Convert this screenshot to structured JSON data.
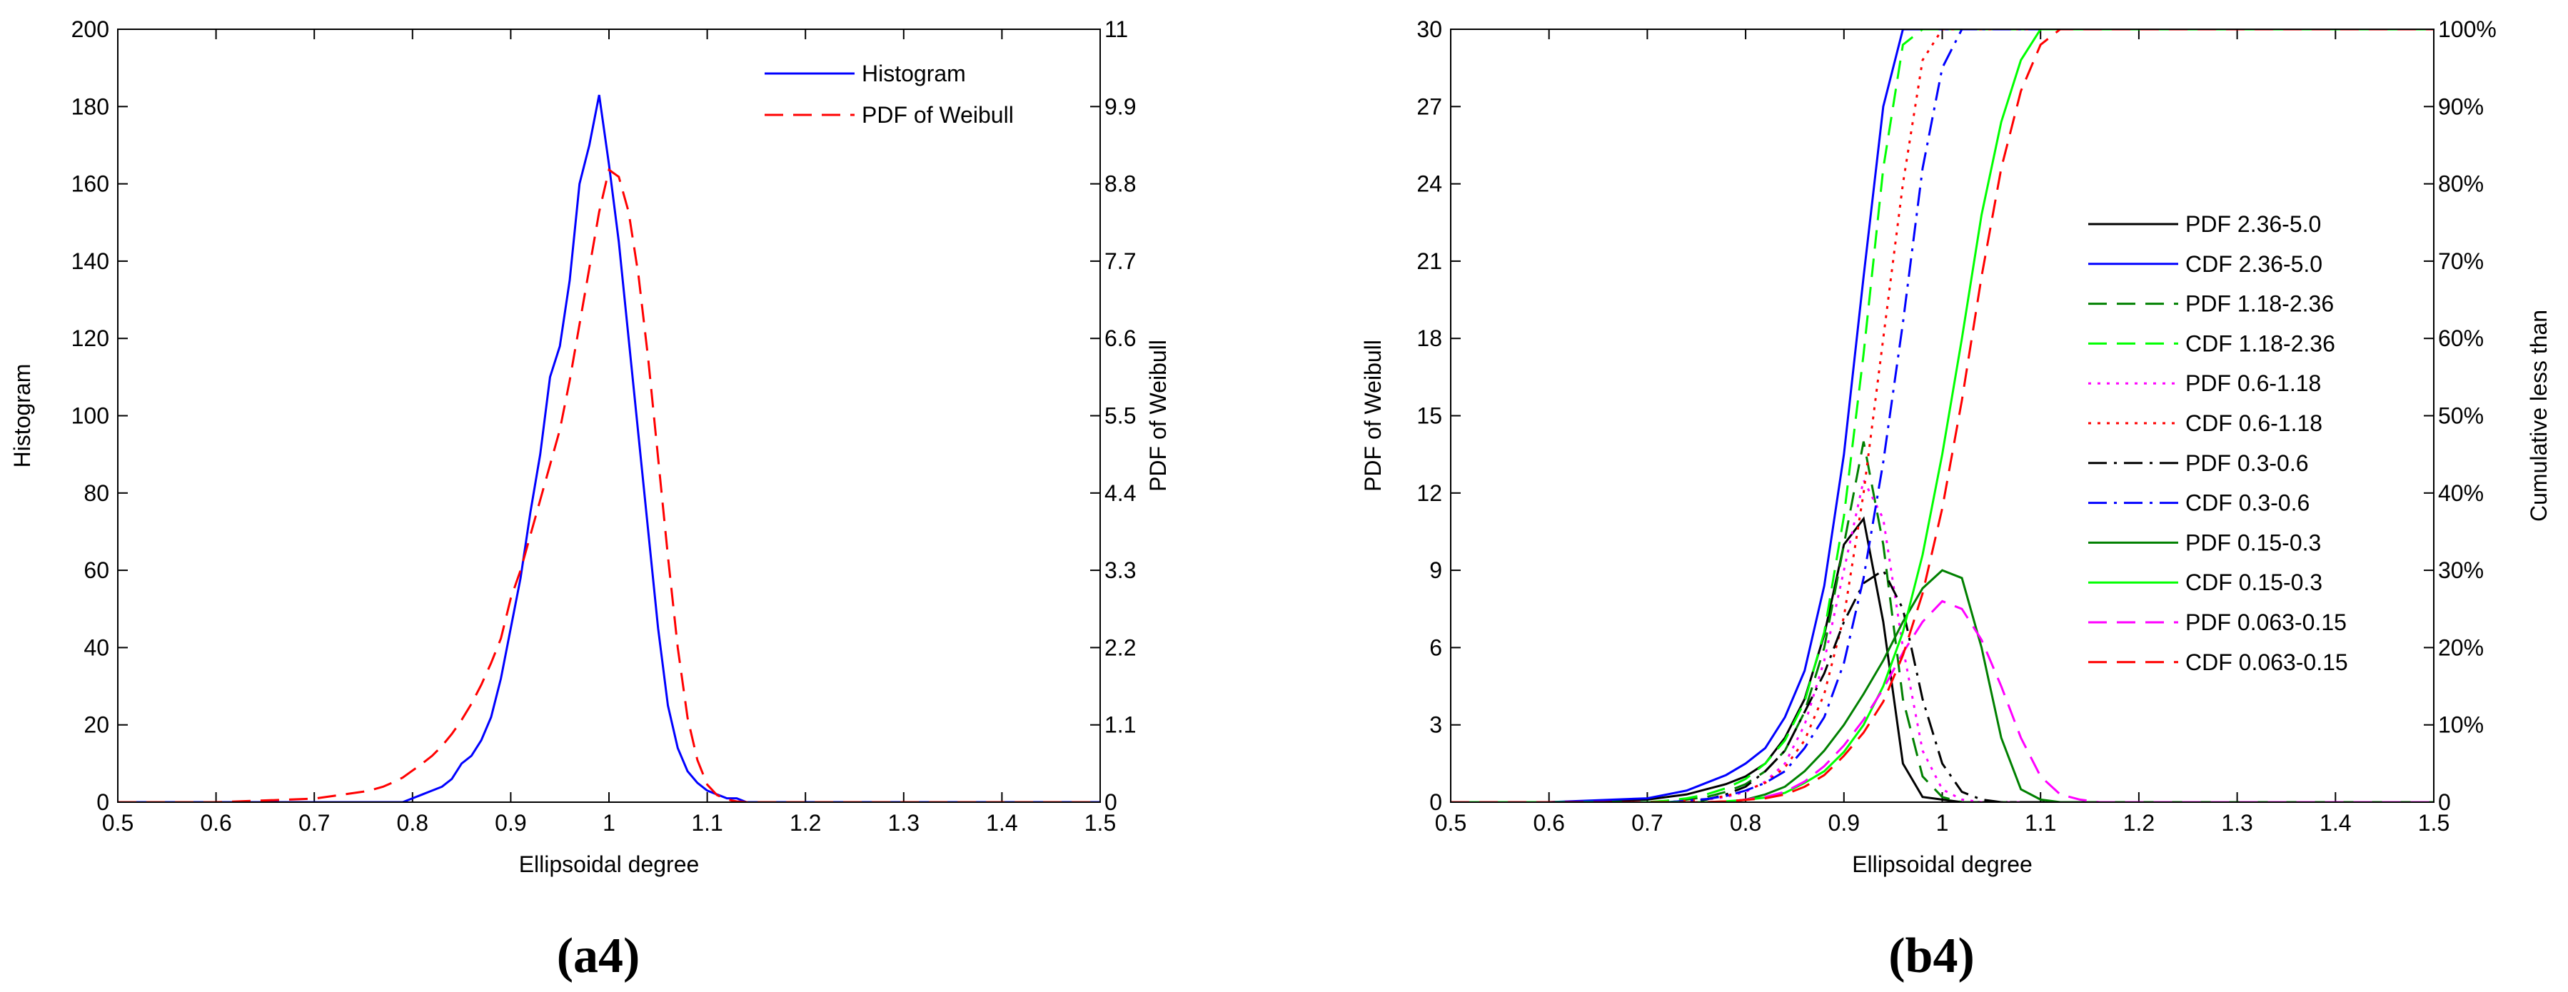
{
  "chart_data": [
    {
      "type": "line",
      "caption": "(a4)",
      "xlabel": "Ellipsoidal degree",
      "ylabel": "Histogram",
      "y2label": "PDF of Weibull",
      "legend": "upper right",
      "xlim": [
        0.5,
        1.5
      ],
      "xticks": [
        0.5,
        0.6,
        0.7,
        0.8,
        0.9,
        1,
        1.1,
        1.2,
        1.3,
        1.4,
        1.5
      ],
      "ylim": [
        0,
        200
      ],
      "yticks": [
        0,
        20,
        40,
        60,
        80,
        100,
        120,
        140,
        160,
        180,
        200
      ],
      "y2lim": [
        0,
        11
      ],
      "y2ticks": [
        0,
        1.1,
        2.2,
        3.3,
        4.4,
        5.5,
        6.6,
        7.7,
        8.8,
        9.9,
        11
      ],
      "x": [
        0.5,
        0.6,
        0.7,
        0.75,
        0.76,
        0.77,
        0.78,
        0.79,
        0.8,
        0.81,
        0.82,
        0.83,
        0.84,
        0.85,
        0.86,
        0.87,
        0.88,
        0.89,
        0.9,
        0.91,
        0.92,
        0.93,
        0.94,
        0.95,
        0.96,
        0.97,
        0.98,
        0.99,
        1.0,
        1.01,
        1.02,
        1.03,
        1.04,
        1.05,
        1.06,
        1.07,
        1.08,
        1.09,
        1.1,
        1.11,
        1.12,
        1.13,
        1.14,
        1.15,
        1.16,
        1.17,
        1.18,
        1.19,
        1.2,
        1.3,
        1.4,
        1.5
      ],
      "series": [
        {
          "name": "Histogram",
          "color": "#0000ff",
          "dash": "solid",
          "values": [
            0,
            0,
            0,
            0,
            0,
            0,
            0,
            0,
            1,
            2,
            3,
            4,
            6,
            10,
            12,
            16,
            22,
            32,
            45,
            58,
            75,
            90,
            110,
            118,
            135,
            160,
            170,
            183,
            165,
            145,
            120,
            95,
            70,
            45,
            25,
            14,
            8,
            5,
            3,
            2,
            1,
            1,
            0,
            0,
            0,
            0,
            0,
            0,
            0,
            0,
            0,
            0
          ]
        },
        {
          "name": "PDF of Weibull",
          "color": "#ff0000",
          "dash": "dashed",
          "axis": "y2",
          "values": [
            0,
            0,
            0.05,
            0.15,
            0.18,
            0.22,
            0.28,
            0.35,
            0.45,
            0.55,
            0.66,
            0.8,
            0.97,
            1.17,
            1.4,
            1.67,
            1.98,
            2.33,
            2.9,
            3.3,
            3.8,
            4.3,
            4.8,
            5.3,
            6.0,
            6.8,
            7.6,
            8.4,
            9.0,
            8.9,
            8.4,
            7.5,
            6.3,
            4.9,
            3.5,
            2.2,
            1.2,
            0.6,
            0.25,
            0.1,
            0.04,
            0.01,
            0,
            0,
            0,
            0,
            0,
            0,
            0,
            0,
            0,
            0
          ]
        }
      ]
    },
    {
      "type": "line",
      "caption": "(b4)",
      "xlabel": "Ellipsoidal degree",
      "ylabel": "PDF of Weibull",
      "y2label": "Cumulative less than",
      "legend": "right",
      "xlim": [
        0.5,
        1.5
      ],
      "xticks": [
        0.5,
        0.6,
        0.7,
        0.8,
        0.9,
        1,
        1.1,
        1.2,
        1.3,
        1.4,
        1.5
      ],
      "ylim": [
        0,
        30
      ],
      "yticks": [
        0,
        3,
        6,
        9,
        12,
        15,
        18,
        21,
        24,
        27,
        30
      ],
      "y2lim": [
        0,
        100
      ],
      "y2ticks": [
        0,
        {
          "value": 10,
          "label": "10%"
        },
        {
          "value": 20,
          "label": "20%"
        },
        {
          "value": 30,
          "label": "30%"
        },
        {
          "value": 40,
          "label": "40%"
        },
        {
          "value": 50,
          "label": "50%"
        },
        {
          "value": 60,
          "label": "60%"
        },
        {
          "value": 70,
          "label": "70%"
        },
        {
          "value": 80,
          "label": "80%"
        },
        {
          "value": 90,
          "label": "90%"
        },
        {
          "value": 100,
          "label": "100%"
        }
      ],
      "x": [
        0.5,
        0.6,
        0.7,
        0.72,
        0.74,
        0.76,
        0.78,
        0.8,
        0.82,
        0.84,
        0.86,
        0.88,
        0.9,
        0.92,
        0.94,
        0.96,
        0.98,
        1.0,
        1.02,
        1.04,
        1.06,
        1.08,
        1.1,
        1.12,
        1.14,
        1.16,
        1.18,
        1.2,
        1.3,
        1.4,
        1.5
      ],
      "series": [
        {
          "name": "PDF 2.36-5.0",
          "color": "#000000",
          "dash": "solid",
          "values": [
            0,
            0,
            0.1,
            0.2,
            0.3,
            0.5,
            0.7,
            1.0,
            1.5,
            2.5,
            4,
            6.5,
            10,
            11,
            7,
            1.5,
            0.2,
            0.1,
            0,
            0,
            0,
            0,
            0,
            0,
            0,
            0,
            0,
            0,
            0,
            0,
            0
          ]
        },
        {
          "name": "CDF 2.36-5.0",
          "color": "#0000ff",
          "dash": "solid",
          "axis": "y2",
          "values": [
            0,
            0,
            0.5,
            1,
            1.5,
            2.5,
            3.5,
            5,
            7,
            11,
            17,
            28,
            45,
            68,
            90,
            100,
            100,
            100,
            100,
            100,
            100,
            100,
            100,
            100,
            100,
            100,
            100,
            100,
            100,
            100,
            100
          ]
        },
        {
          "name": "PDF 1.18-2.36",
          "color": "#008000",
          "dash": "dashed",
          "values": [
            0,
            0,
            0,
            0,
            0.1,
            0.2,
            0.4,
            0.7,
            1.2,
            2,
            3.5,
            6,
            10,
            14,
            10,
            4,
            1,
            0.2,
            0,
            0,
            0,
            0,
            0,
            0,
            0,
            0,
            0,
            0,
            0,
            0,
            0
          ]
        },
        {
          "name": "CDF 1.18-2.36",
          "color": "#00ff00",
          "dash": "dashed",
          "axis": "y2",
          "values": [
            0,
            0,
            0,
            0.2,
            0.5,
            1,
            1.8,
            3,
            5,
            8,
            13,
            22,
            37,
            58,
            82,
            98,
            100,
            100,
            100,
            100,
            100,
            100,
            100,
            100,
            100,
            100,
            100,
            100,
            100,
            100,
            100
          ]
        },
        {
          "name": "PDF 0.6-1.18",
          "color": "#ff00ff",
          "dash": "dotted",
          "values": [
            0,
            0,
            0,
            0,
            0,
            0.1,
            0.2,
            0.4,
            0.8,
            1.5,
            3,
            5.5,
            9,
            12.5,
            11,
            6,
            2,
            0.5,
            0.1,
            0,
            0,
            0,
            0,
            0,
            0,
            0,
            0,
            0,
            0,
            0,
            0
          ]
        },
        {
          "name": "CDF 0.6-1.18",
          "color": "#ff0000",
          "dash": "dotted",
          "axis": "y2",
          "values": [
            0,
            0,
            0,
            0,
            0.2,
            0.4,
            0.8,
            1.5,
            2.5,
            4.5,
            8,
            14,
            24,
            40,
            60,
            80,
            96,
            100,
            100,
            100,
            100,
            100,
            100,
            100,
            100,
            100,
            100,
            100,
            100,
            100,
            100
          ]
        },
        {
          "name": "PDF 0.3-0.6",
          "color": "#000000",
          "dash": "dashdot",
          "values": [
            0,
            0,
            0,
            0,
            0,
            0.1,
            0.3,
            0.6,
            1.2,
            2,
            3.5,
            5,
            7,
            8.5,
            9,
            7.5,
            4,
            1.5,
            0.4,
            0.1,
            0,
            0,
            0,
            0,
            0,
            0,
            0,
            0,
            0,
            0,
            0
          ]
        },
        {
          "name": "CDF 0.3-0.6",
          "color": "#0000ff",
          "dash": "dashdot",
          "axis": "y2",
          "values": [
            0,
            0,
            0,
            0,
            0.2,
            0.4,
            0.8,
            1.5,
            2.5,
            4,
            7,
            11,
            18,
            29,
            44,
            62,
            82,
            95,
            100,
            100,
            100,
            100,
            100,
            100,
            100,
            100,
            100,
            100,
            100,
            100,
            100
          ]
        },
        {
          "name": "PDF 0.15-0.3",
          "color": "#008000",
          "dash": "solid",
          "values": [
            0,
            0,
            0,
            0,
            0,
            0,
            0,
            0.1,
            0.3,
            0.6,
            1.2,
            2,
            3,
            4.2,
            5.5,
            7,
            8.3,
            9,
            8.7,
            6,
            2.5,
            0.5,
            0.1,
            0,
            0,
            0,
            0,
            0,
            0,
            0,
            0
          ]
        },
        {
          "name": "CDF 0.15-0.3",
          "color": "#00ff00",
          "dash": "solid",
          "axis": "y2",
          "values": [
            0,
            0,
            0,
            0,
            0,
            0,
            0.1,
            0.3,
            0.6,
            1.2,
            2.5,
            4,
            6.5,
            10,
            15,
            22,
            32,
            45,
            60,
            76,
            88,
            96,
            100,
            100,
            100,
            100,
            100,
            100,
            100,
            100,
            100
          ]
        },
        {
          "name": "PDF 0.063-0.15",
          "color": "#ff00ff",
          "dash": "dashed",
          "values": [
            0,
            0,
            0,
            0,
            0,
            0,
            0,
            0.1,
            0.2,
            0.4,
            0.8,
            1.4,
            2.2,
            3.2,
            4.4,
            5.8,
            7,
            7.8,
            7.5,
            6.3,
            4.5,
            2.5,
            1,
            0.3,
            0.1,
            0,
            0,
            0,
            0,
            0,
            0
          ]
        },
        {
          "name": "CDF 0.063-0.15",
          "color": "#ff0000",
          "dash": "dashed",
          "axis": "y2",
          "values": [
            0,
            0,
            0,
            0,
            0,
            0,
            0.1,
            0.3,
            0.5,
            1,
            2,
            3.5,
            6,
            9,
            13,
            19,
            27,
            38,
            52,
            68,
            82,
            92,
            98,
            100,
            100,
            100,
            100,
            100,
            100,
            100,
            100
          ]
        }
      ]
    }
  ]
}
